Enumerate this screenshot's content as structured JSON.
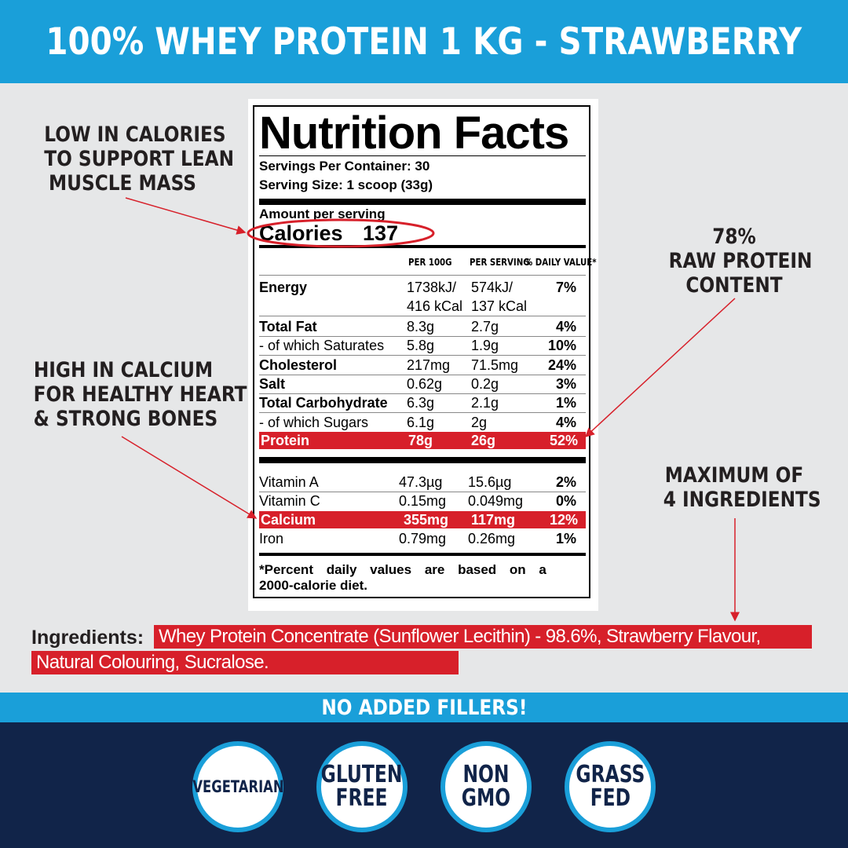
{
  "header": {
    "title": "100% WHEY PROTEIN 1 KG - STRAWBERRY"
  },
  "callouts": {
    "calories": [
      "LOW IN CALORIES",
      "TO SUPPORT LEAN",
      "MUSCLE MASS"
    ],
    "protein": [
      "78%",
      "RAW PROTEIN",
      "CONTENT"
    ],
    "calcium": [
      "HIGH IN CALCIUM",
      "FOR HEALTHY HEART",
      "& STRONG BONES"
    ],
    "ingredients": [
      "MAXIMUM OF",
      "4 INGREDIENTS"
    ]
  },
  "label": {
    "title": "Nutrition Facts",
    "servings_per_container": "Servings Per Container: 30",
    "serving_size": "Serving Size: 1 scoop (33g)",
    "amount_per_serving": "Amount per serving",
    "calories_label": "Calories",
    "calories_value": "137",
    "columns": [
      "PER 100G",
      "PER SERVING",
      "% DAILY VALUE*"
    ],
    "energy": {
      "name": "Energy",
      "per100_1": "1738kJ/",
      "per100_2": "416 kCal",
      "serving_1": "574kJ/",
      "serving_2": "137 kCal",
      "dv": "7%"
    },
    "rows": [
      {
        "name": "Total Fat",
        "per100": "8.3g",
        "serving": "2.7g",
        "dv": "4%",
        "bold": true
      },
      {
        "name": "- of which Saturates",
        "per100": "5.8g",
        "serving": "1.9g",
        "dv": "10%",
        "bold": false
      },
      {
        "name": "Cholesterol",
        "per100": "217mg",
        "serving": "71.5mg",
        "dv": "24%",
        "bold": true
      },
      {
        "name": "Salt",
        "per100": "0.62g",
        "serving": "0.2g",
        "dv": "3%",
        "bold": true
      },
      {
        "name": "Total Carbohydrate",
        "per100": "6.3g",
        "serving": "2.1g",
        "dv": "1%",
        "bold": true
      },
      {
        "name": "- of which Sugars",
        "per100": "6.1g",
        "serving": "2g",
        "dv": "4%",
        "bold": false
      }
    ],
    "protein": {
      "name": "Protein",
      "per100": "78g",
      "serving": "26g",
      "dv": "52%"
    },
    "vitamins": [
      {
        "name": "Vitamin A",
        "per100": "47.3µg",
        "serving": "15.6µg",
        "dv": "2%"
      },
      {
        "name": "Vitamin C",
        "per100": "0.15mg",
        "serving": "0.049mg",
        "dv": "0%"
      }
    ],
    "calcium": {
      "name": "Calcium",
      "per100": "355mg",
      "serving": "117mg",
      "dv": "12%"
    },
    "iron": {
      "name": "Iron",
      "per100": "0.79mg",
      "serving": "0.26mg",
      "dv": "1%"
    },
    "footnote_1": "*Percent daily values are based on a",
    "footnote_2": "2000-calorie diet."
  },
  "ingredients": {
    "label": "Ingredients:",
    "line1": "Whey Protein Concentrate (Sunflower Lecithin) - 98.6%, Strawberry Flavour,",
    "line2": "Natural Colouring, Sucralose."
  },
  "fillers": "NO ADDED FILLERS!",
  "badges": [
    "VEGETARIAN",
    "GLUTEN\nFREE",
    "NON\nGMO",
    "GRASS\nFED"
  ],
  "colors": {
    "blue": "#1a9fd9",
    "navy": "#112449",
    "red": "#d7202a",
    "background": "#e6e7e8"
  }
}
